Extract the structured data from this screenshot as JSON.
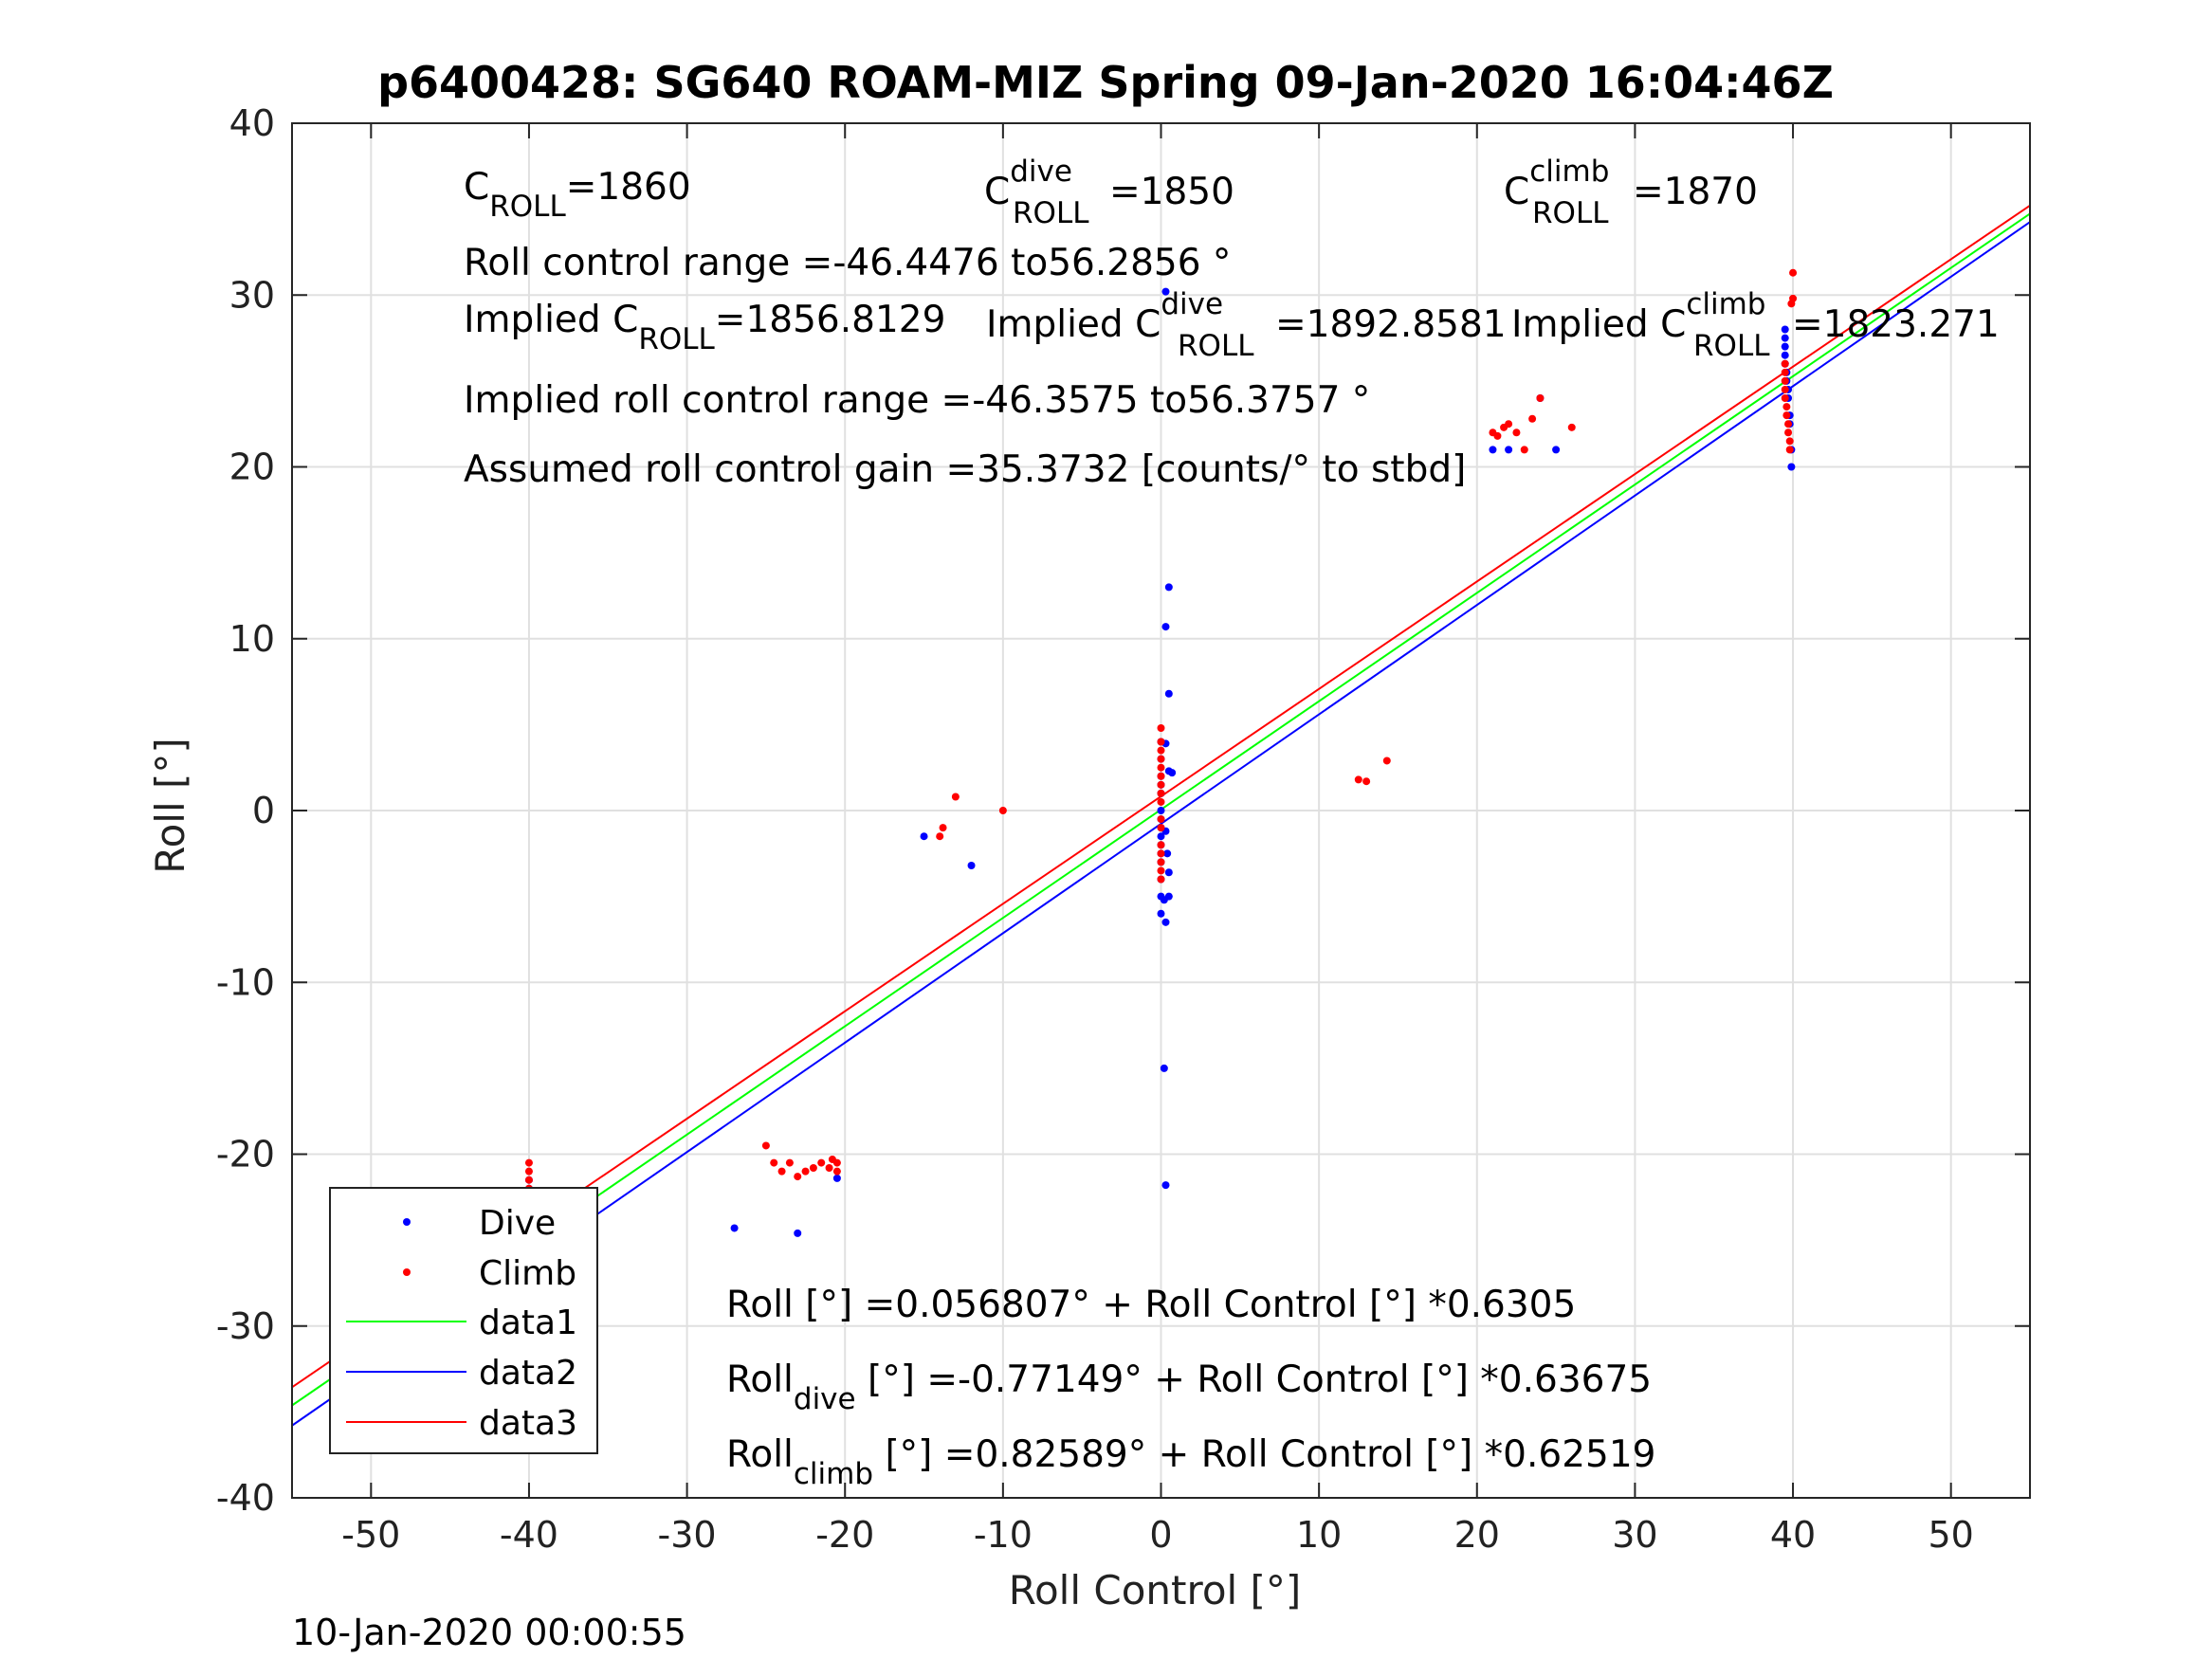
{
  "chart_data": {
    "type": "scatter",
    "title": "p6400428: SG640 ROAM-MIZ Spring 09-Jan-2020 16:04:46Z",
    "xlabel": "Roll Control [°]",
    "ylabel": "Roll [°]",
    "xlim": [
      -55,
      55
    ],
    "ylim": [
      -40,
      40
    ],
    "xticks": [
      -50,
      -40,
      -30,
      -20,
      -10,
      0,
      10,
      20,
      30,
      40,
      50
    ],
    "yticks": [
      -40,
      -30,
      -20,
      -10,
      0,
      10,
      20,
      30,
      40
    ],
    "grid": true,
    "legend_position": "bottom-left",
    "series": [
      {
        "name": "Dive",
        "kind": "points",
        "color": "#0000ff",
        "x": [
          -40,
          -40,
          -40,
          -40,
          -40,
          -40,
          -40,
          -40,
          -40,
          -40,
          -40,
          -40,
          -40,
          -40,
          -27,
          -23,
          -20.5,
          -15,
          -12,
          0,
          0,
          0,
          0,
          0,
          0,
          0,
          0,
          0,
          0,
          0,
          0,
          0,
          0,
          0,
          0.3,
          0.5,
          0.3,
          0.5,
          0.3,
          0.5,
          0.3,
          0.2,
          0.3,
          0.5,
          0.3,
          0.7,
          0.4,
          0.2,
          0.5,
          21,
          22,
          25,
          24,
          39.5,
          39.5,
          39.5,
          39.5,
          39.5,
          39.6,
          39.6,
          39.7,
          39.7,
          39.8,
          39.8,
          39.9,
          39.9
        ],
        "y": [
          -28,
          -27.5,
          -27,
          -26.5,
          -26,
          -25.5,
          -25,
          -24.5,
          -24,
          -23,
          -22.5,
          -22,
          -21.5,
          -25.8,
          -24.3,
          -24.6,
          -21.4,
          -1.5,
          -3.2,
          0,
          -0.5,
          -1,
          -1.5,
          -2,
          -2.5,
          -3,
          -4,
          -5,
          -6,
          1,
          1.5,
          2,
          3,
          4,
          30.2,
          13,
          10.7,
          6.8,
          3.9,
          -5,
          -6.5,
          -15,
          -21.8,
          2.3,
          -1.2,
          2.2,
          -2.5,
          -5.2,
          -3.6,
          21,
          21,
          21,
          24,
          28,
          27.5,
          27,
          26.5,
          26,
          25.5,
          25,
          24.5,
          24,
          23,
          22.5,
          21,
          20
        ],
        "legend": "Dive"
      },
      {
        "name": "Climb",
        "kind": "points",
        "color": "#ff0000",
        "x": [
          -40,
          -40,
          -40,
          -40,
          -40,
          -40,
          -40,
          -40,
          -40,
          -40,
          -40,
          -40,
          -40,
          -25,
          -24.5,
          -24,
          -23.5,
          -23,
          -22.5,
          -22,
          -21.5,
          -21,
          -20.5,
          -20.5,
          -20.8,
          -14,
          -13.8,
          -13,
          -10,
          0,
          0,
          0,
          0,
          0,
          0,
          0,
          0,
          0,
          0,
          0,
          0,
          0,
          0,
          0,
          0,
          12.5,
          13,
          14.3,
          21,
          21.3,
          21.7,
          22,
          22.5,
          23,
          23.5,
          24,
          26,
          39.5,
          39.5,
          39.5,
          39.5,
          39.5,
          39.6,
          39.6,
          39.7,
          39.7,
          39.8,
          39.8,
          39.9,
          40,
          40
        ],
        "y": [
          -20.5,
          -21,
          -21.5,
          -22,
          -22.5,
          -23,
          -23.5,
          -24,
          -24.5,
          -25,
          -25.5,
          -26,
          -24.2,
          -19.5,
          -20.5,
          -21,
          -20.5,
          -21.3,
          -21,
          -20.8,
          -20.5,
          -20.8,
          -20.5,
          -21,
          -20.3,
          -1.5,
          -1,
          0.8,
          0,
          4.8,
          4,
          3.5,
          3,
          2.5,
          2,
          1.5,
          1,
          0.5,
          -0.5,
          -1,
          -2,
          -2.5,
          -3,
          -3.5,
          -4,
          1.8,
          1.7,
          2.9,
          22,
          21.8,
          22.3,
          22.5,
          22,
          21,
          22.8,
          24,
          22.3,
          26,
          25.5,
          25,
          24.5,
          24,
          23.5,
          23,
          22.5,
          22,
          21.5,
          21,
          29.5,
          31.3,
          29.8
        ],
        "legend": "Climb"
      },
      {
        "name": "data1",
        "kind": "line",
        "color": "#00ff00",
        "intercept": 0.056807,
        "slope": 0.6305,
        "legend": "data1"
      },
      {
        "name": "data2",
        "kind": "line",
        "color": "#0000ff",
        "intercept": -0.77149,
        "slope": 0.63675,
        "legend": "data2"
      },
      {
        "name": "data3",
        "kind": "line",
        "color": "#ff0000",
        "intercept": 0.82589,
        "slope": 0.62519,
        "legend": "data3"
      }
    ]
  },
  "annotations": {
    "c_roll_main": "C",
    "c_roll_sub": "ROLL",
    "c_roll_val": "=1860",
    "c_dive_main": "C",
    "c_dive_sup": "dive",
    "c_dive_sub": "ROLL",
    "c_dive_val": "=1850",
    "c_climb_main": "C",
    "c_climb_sup": "climb",
    "c_climb_sub": "ROLL",
    "c_climb_val": "=1870",
    "roll_range": "Roll control range =-46.4476 to56.2856 °",
    "implied_main": "Implied C",
    "implied_sub": "ROLL",
    "implied_val": "=1856.8129",
    "implied_dive_main": "Implied C",
    "implied_dive_sup": "dive",
    "implied_dive_sub": "ROLL",
    "implied_dive_val": "=1892.8581",
    "implied_climb_main": "Implied C",
    "implied_climb_sup": "climb",
    "implied_climb_sub": "ROLL",
    "implied_climb_val": "=1823.271",
    "implied_range": "Implied roll control range =-46.3575 to56.3757 °",
    "gain": "Assumed roll control gain =35.3732 [counts/° to stbd]",
    "fit1": "Roll [°] =0.056807° + Roll Control [°] *0.6305",
    "fit2_main": "Roll",
    "fit2_sub": "dive",
    "fit2_rest": " [°] =-0.77149° + Roll Control [°] *0.63675",
    "fit3_main": "Roll",
    "fit3_sub": "climb",
    "fit3_rest": " [°] =0.82589° + Roll Control [°] *0.62519"
  },
  "footer": "10-Jan-2020 00:00:55"
}
